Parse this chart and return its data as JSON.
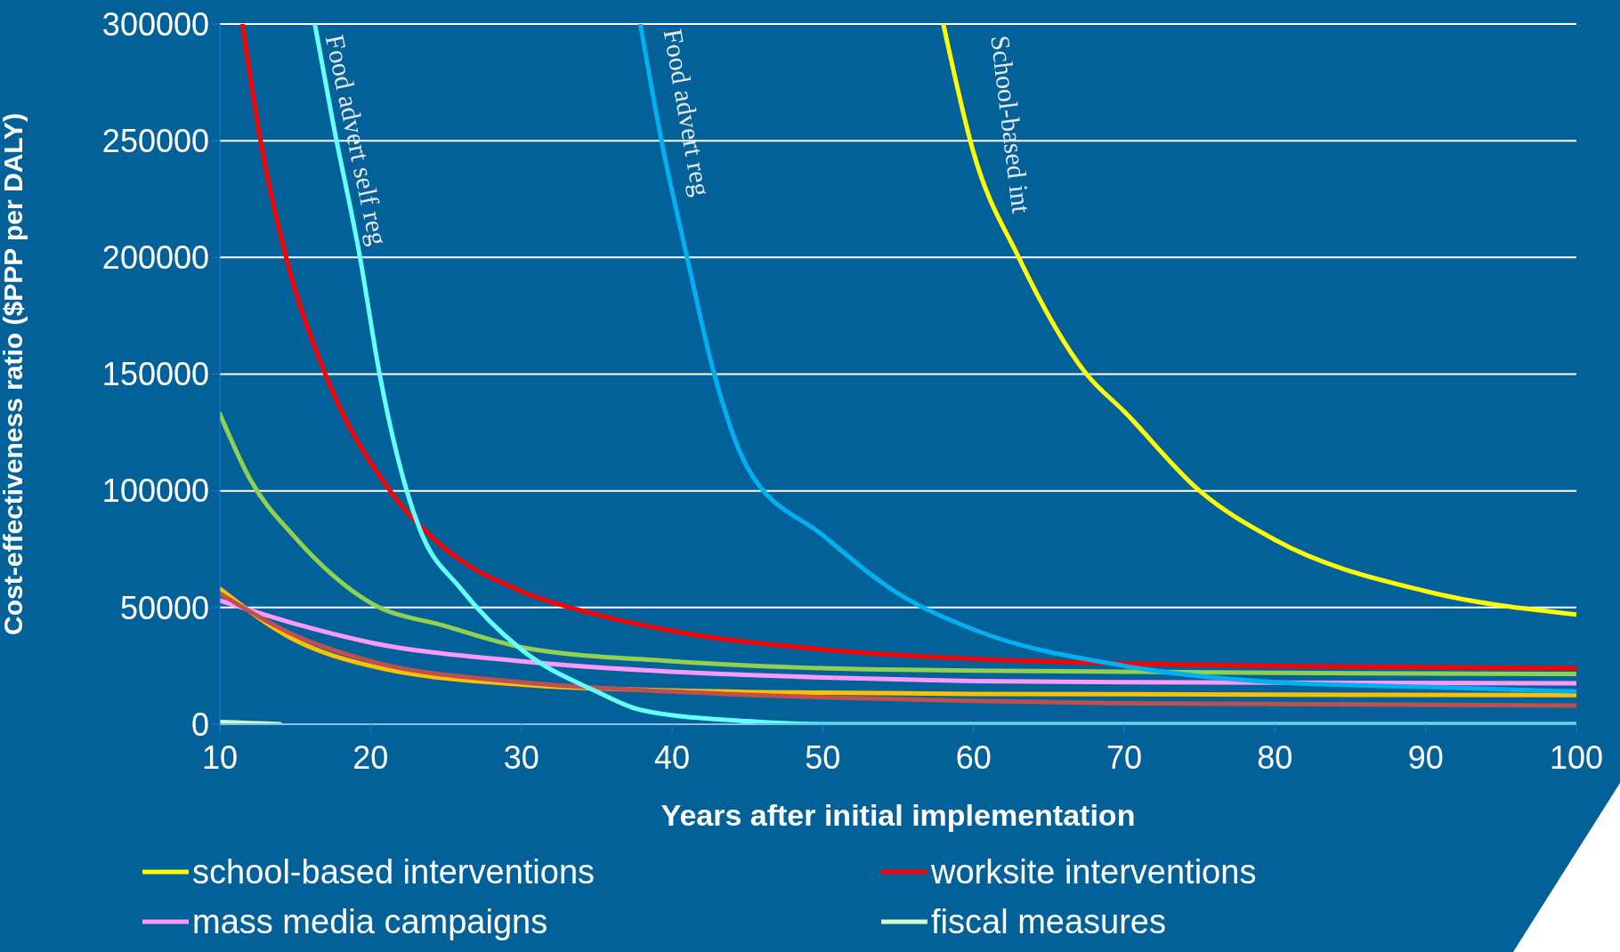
{
  "chart_data": {
    "type": "line",
    "xlabel": "Years after initial implementation",
    "ylabel": "Cost-effectiveness ratio ($PPP per DALY)",
    "xlim": [
      10,
      100
    ],
    "xticks": [
      10,
      20,
      30,
      40,
      50,
      60,
      70,
      80,
      90,
      100
    ],
    "ylim": [
      0,
      300000
    ],
    "yticks": [
      0,
      50000,
      100000,
      150000,
      200000,
      250000,
      300000
    ],
    "grid": "y",
    "legend": "bottom",
    "marker": "none",
    "line_style": "solid",
    "series": [
      {
        "name": "school-based interventions",
        "color": "#ffff00",
        "x": [
          58,
          60,
          63,
          67.5,
          70,
          75,
          80,
          90,
          100
        ],
        "values": [
          300000,
          245000,
          200000,
          150000,
          134000,
          100000,
          79000,
          57000,
          47000
        ]
      },
      {
        "name": "worksite interventions",
        "color": "#ff0000",
        "x": [
          11.5,
          12.7,
          14.4,
          17,
          21.3,
          25,
          30,
          35,
          40,
          50,
          60,
          70,
          80,
          90,
          100
        ],
        "values": [
          300000,
          250000,
          200000,
          150000,
          100000,
          75000,
          57000,
          47000,
          40000,
          32000,
          28000,
          26000,
          25000,
          24500,
          24000
        ]
      },
      {
        "name": "mass media campaigns",
        "color": "#ff99ff",
        "x": [
          10,
          15,
          20,
          30,
          40,
          50,
          60,
          70,
          100
        ],
        "values": [
          53000,
          43000,
          35000,
          27000,
          22500,
          20000,
          18500,
          18000,
          17500
        ]
      },
      {
        "name": "fiscal measures",
        "color": "#ccffcc",
        "x": [
          10,
          12,
          14
        ],
        "values": [
          1000,
          500,
          0
        ]
      },
      {
        "color": "#92d050",
        "x": [
          10,
          12,
          15,
          20,
          25,
          30,
          40,
          50,
          60,
          70,
          80,
          100
        ],
        "values": [
          133000,
          105000,
          80000,
          52000,
          42000,
          33000,
          27000,
          24000,
          23000,
          22500,
          22000,
          21500
        ]
      },
      {
        "color": "#ffc000",
        "x": [
          10,
          15,
          20,
          30,
          40,
          50,
          60,
          100
        ],
        "values": [
          58000,
          36000,
          25000,
          17000,
          14500,
          13500,
          13000,
          12500
        ]
      },
      {
        "color": "#c0504d",
        "x": [
          10,
          15,
          20,
          30,
          40,
          50,
          60,
          70,
          100
        ],
        "values": [
          56000,
          38000,
          27000,
          18000,
          14000,
          11500,
          10000,
          9000,
          8000
        ]
      },
      {
        "color": "#66ffff",
        "x": [
          16.3,
          17.5,
          19.3,
          20.6,
          22.4,
          23.3,
          26,
          30,
          35,
          38,
          45,
          50,
          100
        ],
        "values": [
          300000,
          258000,
          200000,
          150000,
          100000,
          83000,
          58000,
          32000,
          14000,
          6000,
          1300,
          0,
          0
        ]
      },
      {
        "color": "#00b0f0",
        "x": [
          37.9,
          39.3,
          41,
          42.8,
          45,
          50,
          55,
          60,
          70,
          80,
          90,
          100
        ],
        "values": [
          300000,
          250000,
          200000,
          150000,
          110000,
          81000,
          56000,
          40600,
          25000,
          18000,
          16000,
          14000
        ]
      }
    ],
    "annotations": [
      "Food advert self reg",
      "Food advert reg",
      "School-based int"
    ]
  }
}
